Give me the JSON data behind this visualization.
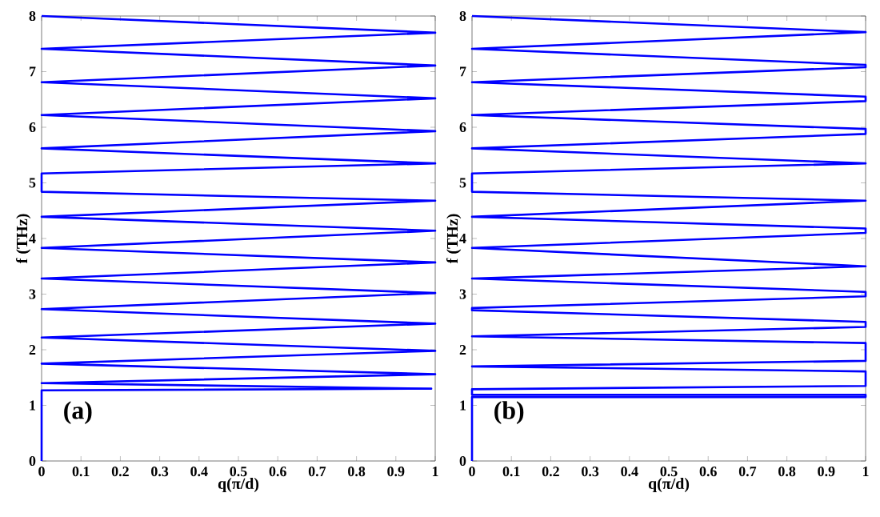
{
  "chart_data": [
    {
      "type": "line",
      "xlabel": "q(π/d)",
      "ylabel": "f (THz)",
      "annotations": [
        "(a)"
      ],
      "color": "#0000ff",
      "xlim": [
        0,
        1
      ],
      "ylim": [
        0,
        8
      ],
      "xticks": [
        0,
        0.1,
        0.2,
        0.3,
        0.4,
        0.5,
        0.6,
        0.7,
        0.8,
        0.9,
        1
      ],
      "yticks": [
        0,
        1,
        2,
        3,
        4,
        5,
        6,
        7,
        8
      ],
      "x": [
        0,
        0,
        0.99,
        0,
        1,
        0,
        1,
        0,
        1,
        0,
        1,
        0,
        1,
        0,
        1,
        0,
        1,
        0,
        0,
        1,
        0,
        1,
        0,
        1,
        0,
        1,
        0,
        1,
        0
      ],
      "values": [
        0,
        1.27,
        1.3,
        1.4,
        1.56,
        1.75,
        1.98,
        2.22,
        2.47,
        2.73,
        3.02,
        3.28,
        3.57,
        3.83,
        4.14,
        4.39,
        4.68,
        4.84,
        5.17,
        5.35,
        5.62,
        5.93,
        6.22,
        6.52,
        6.81,
        7.11,
        7.41,
        7.7,
        8.0
      ]
    },
    {
      "type": "line",
      "xlabel": "q(π/d)",
      "ylabel": "f (THz)",
      "annotations": [
        "(b)"
      ],
      "color": "#0000ff",
      "xlim": [
        0,
        1
      ],
      "ylim": [
        0,
        8
      ],
      "xticks": [
        0,
        0.1,
        0.2,
        0.3,
        0.4,
        0.5,
        0.6,
        0.7,
        0.8,
        0.9,
        1
      ],
      "yticks": [
        0,
        1,
        2,
        3,
        4,
        5,
        6,
        7,
        8
      ],
      "x": [
        0,
        0,
        1,
        1,
        0,
        0,
        1,
        1,
        0,
        1,
        1,
        0,
        1,
        1,
        0,
        0,
        1,
        1,
        0,
        1,
        0,
        1,
        1,
        0,
        1,
        0,
        0,
        1,
        0,
        1,
        1,
        0,
        1,
        1,
        0,
        1,
        1,
        0,
        1,
        0
      ],
      "values": [
        0,
        1.15,
        1.15,
        1.19,
        1.19,
        1.29,
        1.35,
        1.61,
        1.7,
        1.8,
        2.12,
        2.24,
        2.41,
        2.5,
        2.71,
        2.75,
        2.96,
        3.04,
        3.28,
        3.5,
        3.83,
        4.1,
        4.18,
        4.39,
        4.68,
        4.84,
        5.17,
        5.35,
        5.62,
        5.88,
        5.97,
        6.22,
        6.47,
        6.55,
        6.81,
        7.08,
        7.12,
        7.41,
        7.71,
        8.0
      ]
    }
  ]
}
